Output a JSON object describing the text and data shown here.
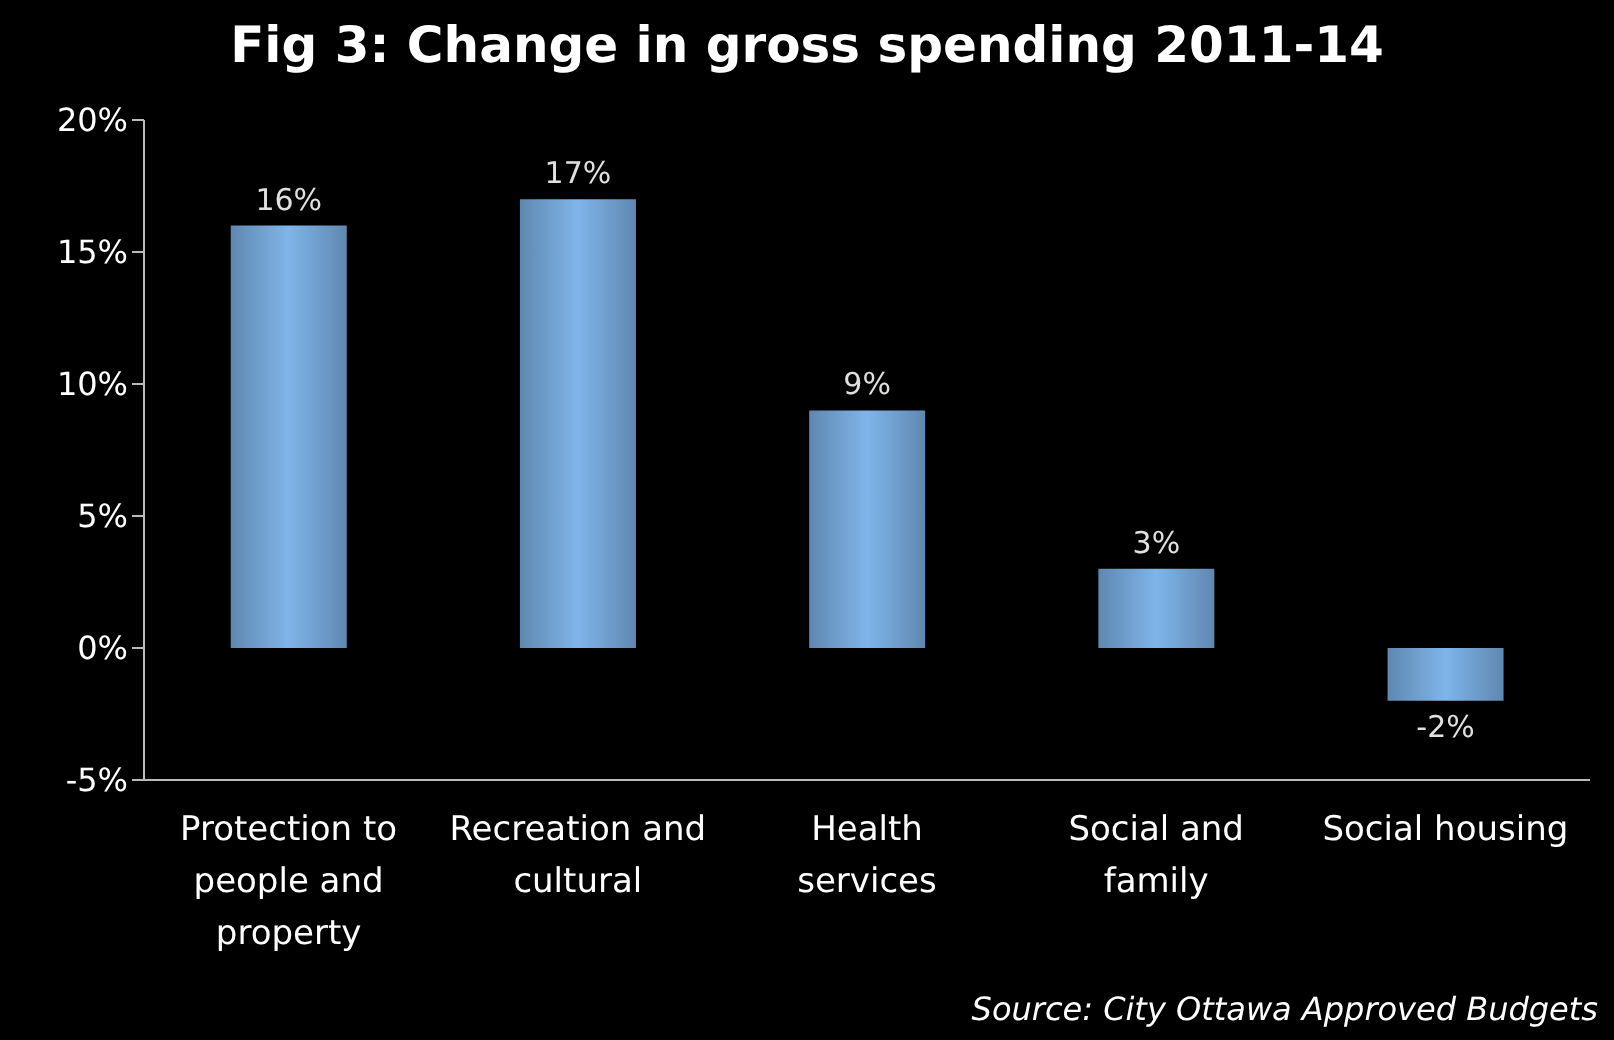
{
  "chart_data": {
    "type": "bar",
    "title": "Fig 3: Change in gross spending 2011-14",
    "categories": [
      "Protection to people and property",
      "Recreation and cultural",
      "Health services",
      "Social and family",
      "Social housing"
    ],
    "values": [
      16,
      17,
      9,
      3,
      -2
    ],
    "color": "#7fb5ea",
    "ylim": [
      -5,
      20
    ],
    "yticks": [
      {
        "value": -5,
        "label": "-5%"
      },
      {
        "value": 0,
        "label": "0%"
      },
      {
        "value": 5,
        "label": "5%"
      },
      {
        "value": 10,
        "label": "10%"
      },
      {
        "value": 15,
        "label": "15%"
      },
      {
        "value": 20,
        "label": "20%"
      }
    ],
    "value_labels": [
      "16%",
      "17%",
      "9%",
      "3%",
      "-2%"
    ],
    "grid": false,
    "legend": false,
    "annotations": [
      "Source: City Ottawa Approved Budgets"
    ]
  }
}
